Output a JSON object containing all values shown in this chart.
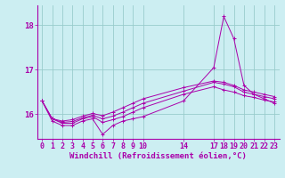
{
  "xlabel": "Windchill (Refroidissement éolien,°C)",
  "bg_color": "#cceef2",
  "line_color": "#aa00aa",
  "grid_color": "#99cccc",
  "xlim": [
    -0.5,
    23.5
  ],
  "ylim": [
    15.45,
    18.45
  ],
  "yticks": [
    16,
    17,
    18
  ],
  "xticks": [
    0,
    1,
    2,
    3,
    4,
    5,
    6,
    7,
    8,
    9,
    10,
    14,
    17,
    18,
    19,
    20,
    21,
    22,
    23
  ],
  "series": [
    [
      16.3,
      15.85,
      15.75,
      15.75,
      15.85,
      15.9,
      15.55,
      15.75,
      15.85,
      15.9,
      15.95,
      16.3,
      17.05,
      18.2,
      17.7,
      16.65,
      16.45,
      16.35,
      16.25
    ],
    [
      16.3,
      15.9,
      15.8,
      15.8,
      15.9,
      15.95,
      15.82,
      15.88,
      15.95,
      16.05,
      16.15,
      16.45,
      16.62,
      16.55,
      16.5,
      16.42,
      16.38,
      16.32,
      16.28
    ],
    [
      16.3,
      15.9,
      15.82,
      15.84,
      15.92,
      15.98,
      15.9,
      15.96,
      16.05,
      16.15,
      16.25,
      16.52,
      16.72,
      16.68,
      16.62,
      16.5,
      16.45,
      16.4,
      16.35
    ],
    [
      16.3,
      15.9,
      15.85,
      15.88,
      15.96,
      16.02,
      15.97,
      16.05,
      16.15,
      16.25,
      16.35,
      16.6,
      16.75,
      16.72,
      16.65,
      16.55,
      16.5,
      16.45,
      16.4
    ]
  ],
  "x_positions": [
    0,
    1,
    2,
    3,
    4,
    5,
    6,
    7,
    8,
    9,
    10,
    14,
    17,
    18,
    19,
    20,
    21,
    22,
    23
  ],
  "tick_fontsize": 6,
  "xlabel_fontsize": 6.5
}
